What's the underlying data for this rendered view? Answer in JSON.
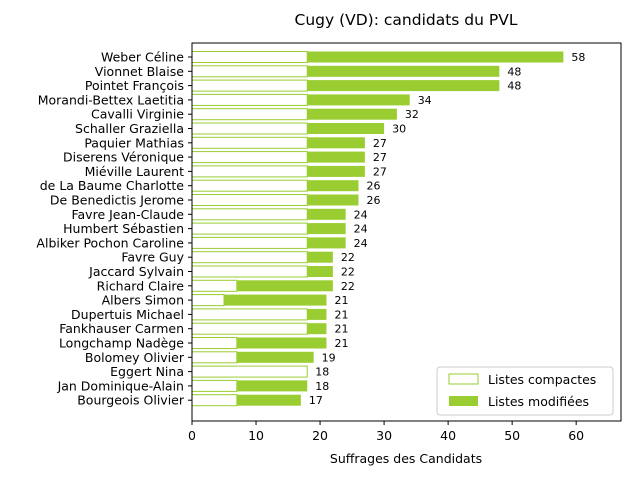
{
  "chart_data": {
    "type": "bar",
    "orientation": "horizontal",
    "stacked": true,
    "title": "Cugy (VD): candidats du PVL",
    "xlabel": "Suffrages des Candidats",
    "ylabel": "",
    "xlim": [
      0,
      67
    ],
    "xticks": [
      0,
      10,
      20,
      30,
      40,
      50,
      60
    ],
    "grid": false,
    "legend_position": "lower-right",
    "colors": {
      "compactes_edge": "#9acd32",
      "compactes_fill": "#ffffff",
      "modifiees_fill": "#9acd32"
    },
    "categories": [
      "Weber Céline",
      "Vionnet Blaise",
      "Pointet François",
      "Morandi-Bettex Laetitia",
      "Cavalli Virginie",
      "Schaller Graziella",
      "Paquier Mathias",
      "Diserens Véronique",
      "Miéville Laurent",
      "de La Baume Charlotte",
      "De Benedictis Jerome",
      "Favre Jean-Claude",
      "Humbert Sébastien",
      "Albiker Pochon Caroline",
      "Favre Guy",
      "Jaccard Sylvain",
      "Richard Claire",
      "Albers Simon",
      "Dupertuis Michael",
      "Fankhauser Carmen",
      "Longchamp Nadège",
      "Bolomey Olivier",
      "Eggert Nina",
      "Jan Dominique-Alain",
      "Bourgeois Olivier"
    ],
    "series": [
      {
        "name": "Listes compactes",
        "values": [
          18,
          18,
          18,
          18,
          18,
          18,
          18,
          18,
          18,
          18,
          18,
          18,
          18,
          18,
          18,
          18,
          7,
          5,
          18,
          18,
          7,
          7,
          18,
          7,
          7
        ]
      },
      {
        "name": "Listes modifiées",
        "values": [
          40,
          30,
          30,
          16,
          14,
          12,
          9,
          9,
          9,
          8,
          8,
          6,
          6,
          6,
          4,
          4,
          15,
          16,
          3,
          3,
          14,
          12,
          0,
          11,
          10
        ]
      }
    ],
    "totals": [
      58,
      48,
      48,
      34,
      32,
      30,
      27,
      27,
      27,
      26,
      26,
      24,
      24,
      24,
      22,
      22,
      22,
      21,
      21,
      21,
      21,
      19,
      18,
      18,
      17
    ]
  }
}
